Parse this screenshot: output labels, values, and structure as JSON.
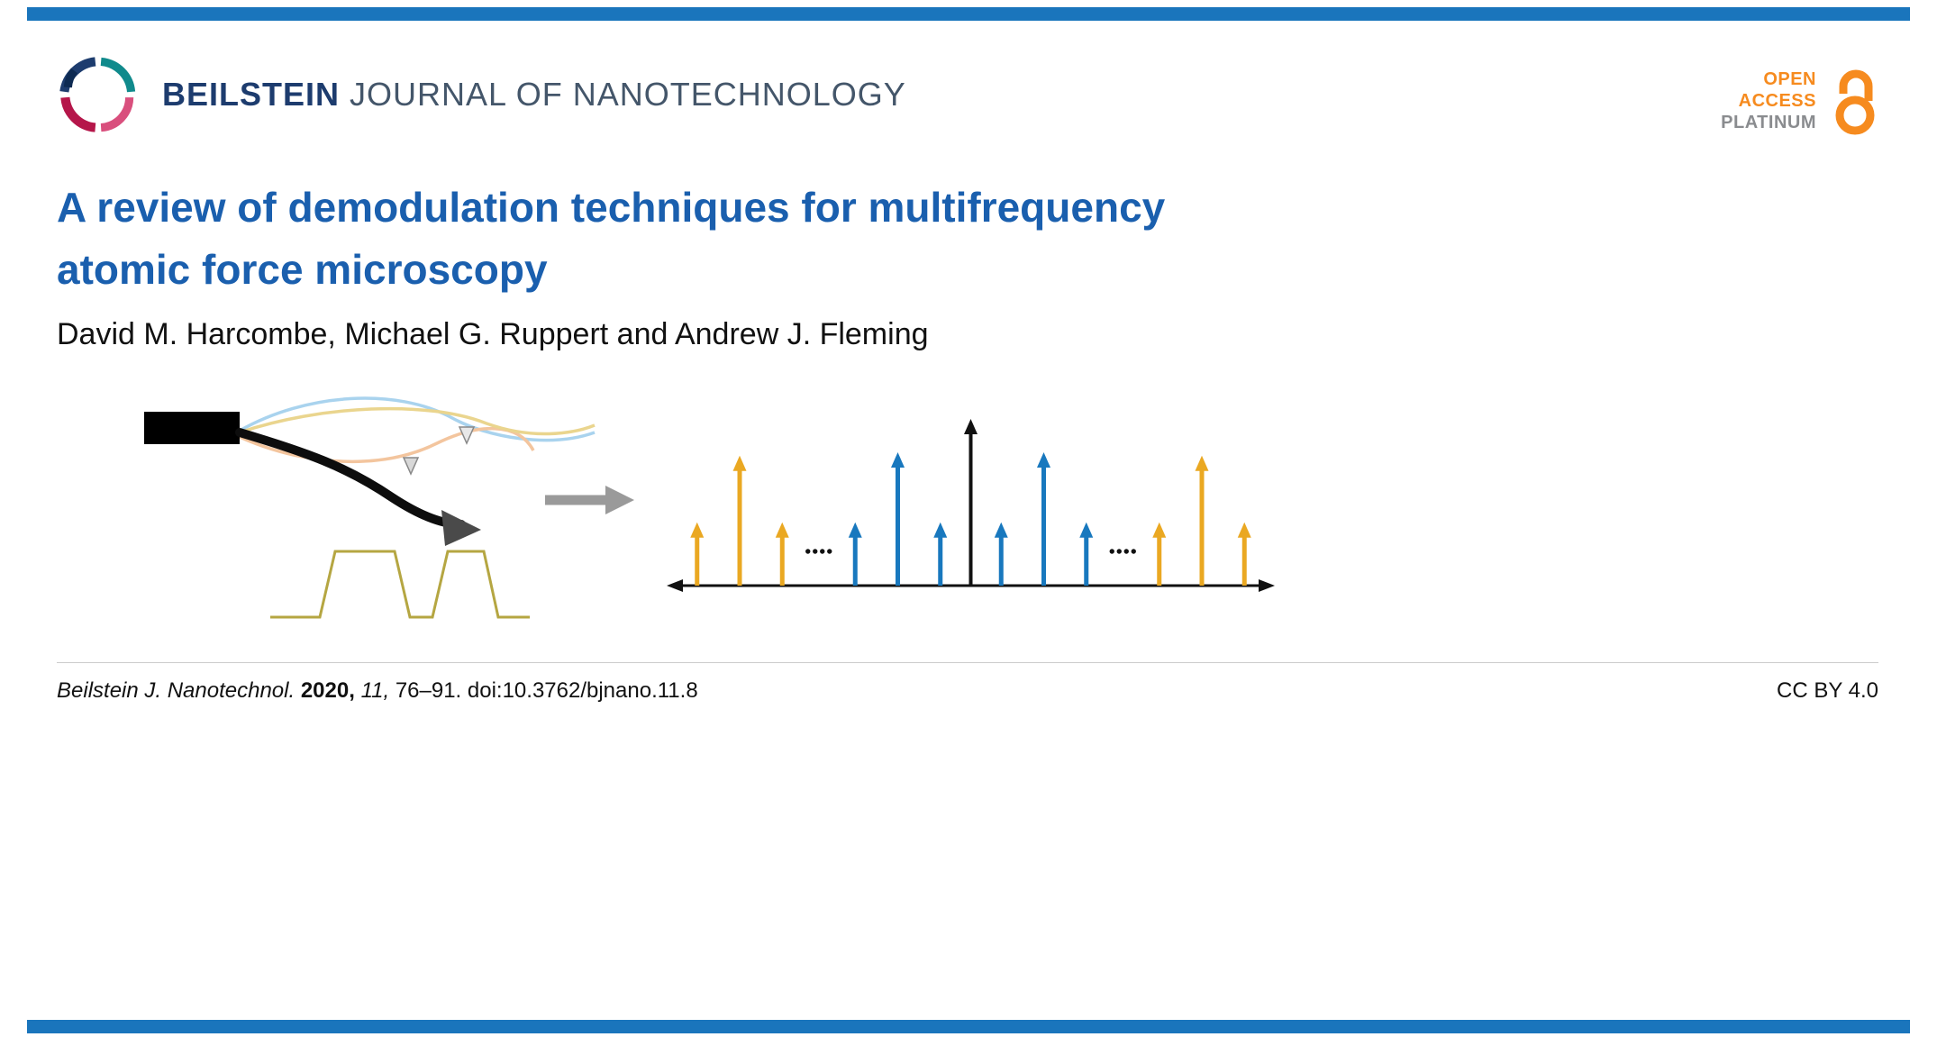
{
  "journal": {
    "wordmark_bold": "BEILSTEIN",
    "wordmark_rest": " JOURNAL OF NANOTECHNOLOGY"
  },
  "open_access": {
    "line1": "OPEN",
    "line2": "ACCESS",
    "line3": "PLATINUM"
  },
  "article": {
    "title": "A review of demodulation techniques for multifrequency atomic force microscopy",
    "authors": "David M. Harcombe, Michael G. Ruppert and Andrew J. Fleming"
  },
  "footer": {
    "cite_journal": "Beilstein J. Nanotechnol. ",
    "cite_year": "2020, ",
    "cite_volume": "11, ",
    "cite_rest": "76–91. doi:10.3762/bjnano.11.8",
    "license": "CC BY 4.0"
  },
  "colors": {
    "accent_bar_blue": "#1a75bc",
    "title_blue": "#1a5fae",
    "brand_navy": "#1d3c6e",
    "brand_slate": "#44566a",
    "open_access_orange": "#f68b1f",
    "platinum_gray": "#8a8c8f",
    "surface_profile_olive": "#b5a642"
  },
  "chart_data": {
    "type": "bar",
    "subtype": "stem-frequency-spectrum",
    "title": "",
    "xlabel": "",
    "ylabel": "",
    "axis_arrow_both_ends": true,
    "ylim": [
      0,
      1
    ],
    "stems": [
      {
        "x": 0.05,
        "h": 0.38,
        "color": "gold"
      },
      {
        "x": 0.12,
        "h": 0.78,
        "color": "gold"
      },
      {
        "x": 0.19,
        "h": 0.38,
        "color": "gold"
      },
      {
        "x": 0.31,
        "h": 0.38,
        "color": "blue"
      },
      {
        "x": 0.38,
        "h": 0.8,
        "color": "blue"
      },
      {
        "x": 0.45,
        "h": 0.38,
        "color": "blue"
      },
      {
        "x": 0.5,
        "h": 1.0,
        "color": "black"
      },
      {
        "x": 0.55,
        "h": 0.38,
        "color": "blue"
      },
      {
        "x": 0.62,
        "h": 0.8,
        "color": "blue"
      },
      {
        "x": 0.69,
        "h": 0.38,
        "color": "blue"
      },
      {
        "x": 0.81,
        "h": 0.38,
        "color": "gold"
      },
      {
        "x": 0.88,
        "h": 0.78,
        "color": "gold"
      },
      {
        "x": 0.95,
        "h": 0.38,
        "color": "gold"
      }
    ],
    "ellipsis_positions": [
      0.25,
      0.75
    ],
    "colors": {
      "gold": "#eaa822",
      "blue": "#1878be",
      "black": "#111111"
    }
  }
}
